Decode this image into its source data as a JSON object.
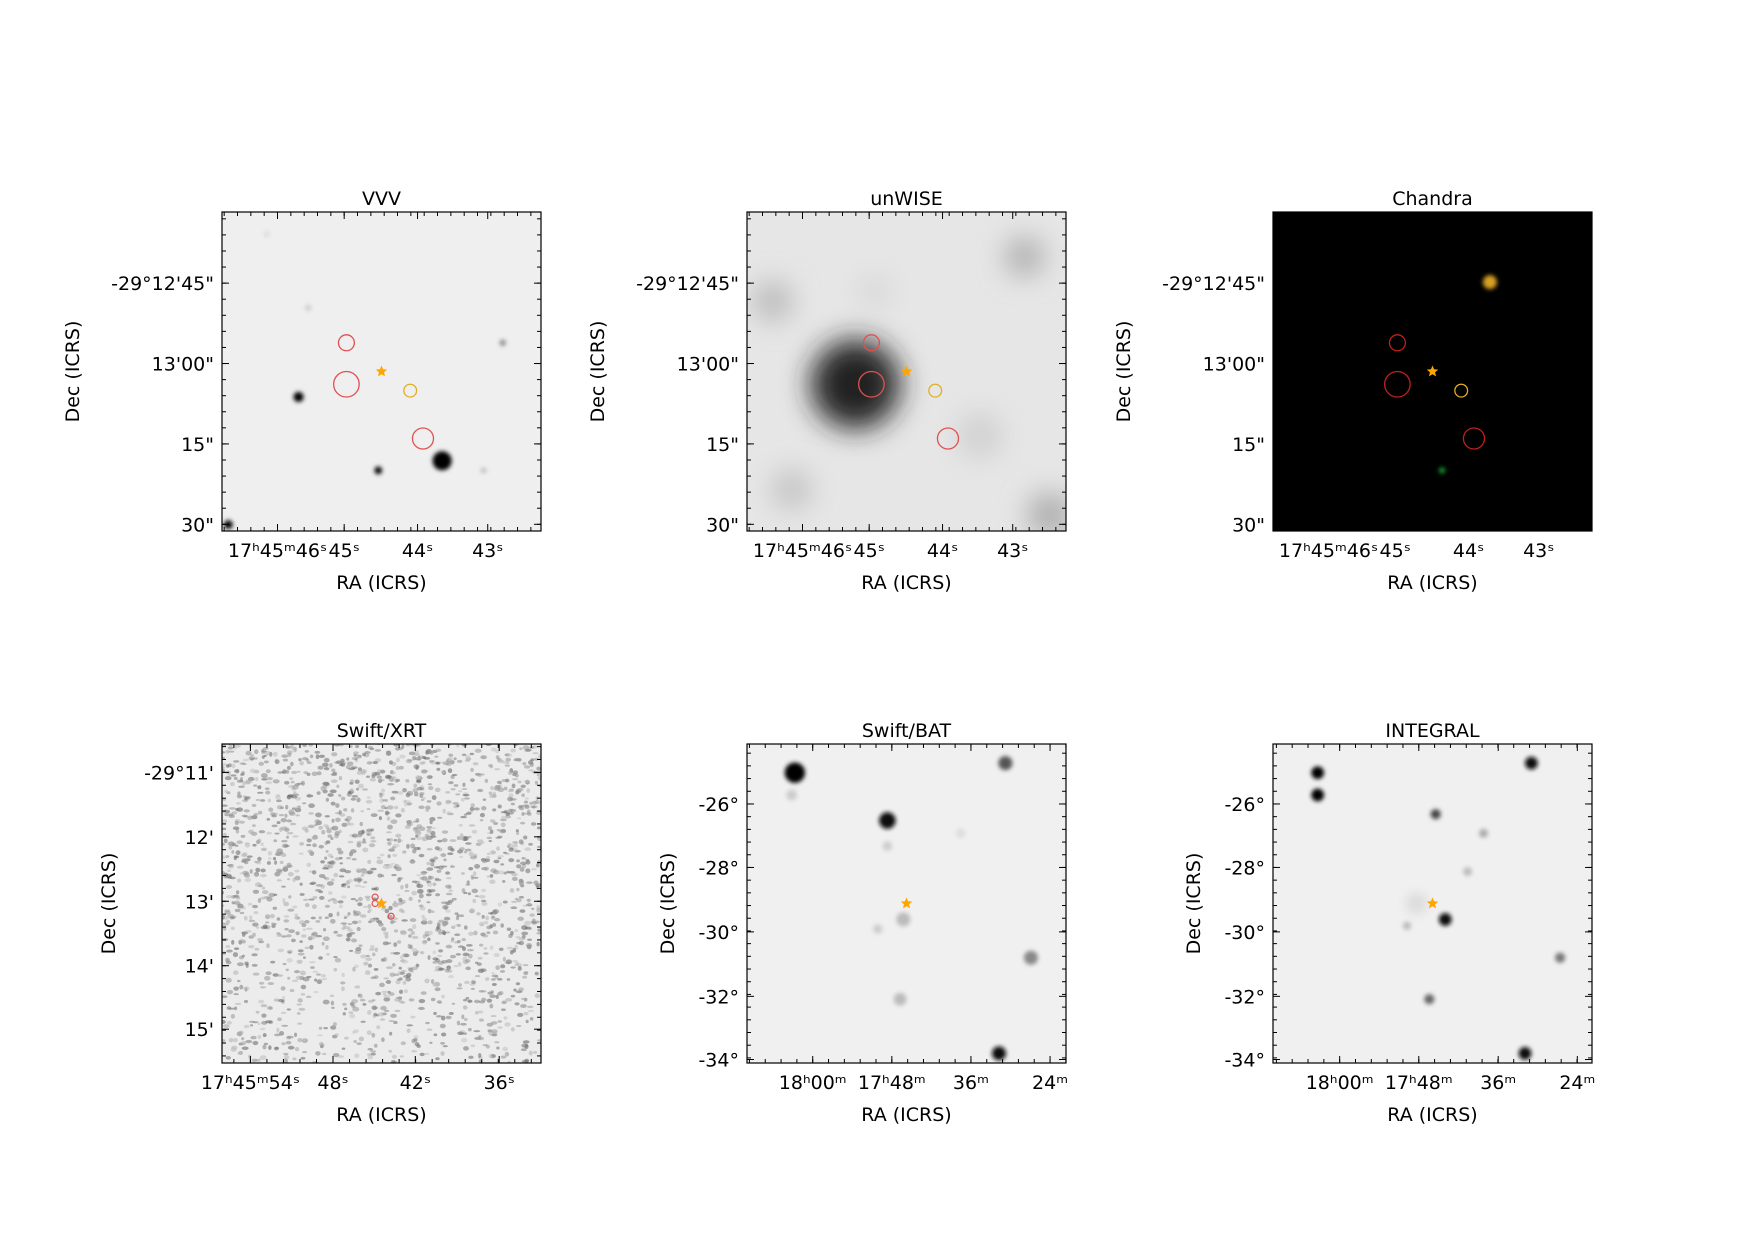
{
  "panels": [
    {
      "title": "VVV",
      "x_label": "RA (ICRS)",
      "y_label": "Dec (ICRS)",
      "x_ticks": [
        "17ʰ45ᵐ46ˢ",
        "45ˢ",
        "44ˢ",
        "43ˢ"
      ],
      "y_ticks": [
        "-29°12'45\"",
        "13'00\"",
        "15\"",
        "30\""
      ]
    },
    {
      "title": "unWISE",
      "x_label": "RA (ICRS)",
      "y_label": "Dec (ICRS)",
      "x_ticks": [
        "17ʰ45ᵐ46ˢ",
        "45ˢ",
        "44ˢ",
        "43ˢ"
      ],
      "y_ticks": [
        "-29°12'45\"",
        "13'00\"",
        "15\"",
        "30\""
      ]
    },
    {
      "title": "Chandra",
      "x_label": "RA (ICRS)",
      "y_label": "Dec (ICRS)",
      "x_ticks": [
        "17ʰ45ᵐ46ˢ",
        "45ˢ",
        "44ˢ",
        "43ˢ"
      ],
      "y_ticks": [
        "-29°12'45\"",
        "13'00\"",
        "15\"",
        "30\""
      ]
    },
    {
      "title": "Swift/XRT",
      "x_label": "RA (ICRS)",
      "y_label": "Dec (ICRS)",
      "x_ticks": [
        "17ʰ45ᵐ54ˢ",
        "48ˢ",
        "42ˢ",
        "36ˢ"
      ],
      "y_ticks": [
        "-29°11'",
        "12'",
        "13'",
        "14'",
        "15'"
      ]
    },
    {
      "title": "Swift/BAT",
      "x_label": "RA (ICRS)",
      "y_label": "Dec (ICRS)",
      "x_ticks": [
        "18ʰ00ᵐ",
        "17ʰ48ᵐ",
        "36ᵐ",
        "24ᵐ"
      ],
      "y_ticks": [
        "-26°",
        "-28°",
        "-30°",
        "-32°",
        "-34°"
      ]
    },
    {
      "title": "INTEGRAL",
      "x_label": "RA (ICRS)",
      "y_label": "Dec (ICRS)",
      "x_ticks": [
        "18ʰ00ᵐ",
        "17ʰ48ᵐ",
        "36ᵐ",
        "24ᵐ"
      ],
      "y_ticks": [
        "-26°",
        "-28°",
        "-30°",
        "-32°",
        "-34°"
      ]
    }
  ]
}
